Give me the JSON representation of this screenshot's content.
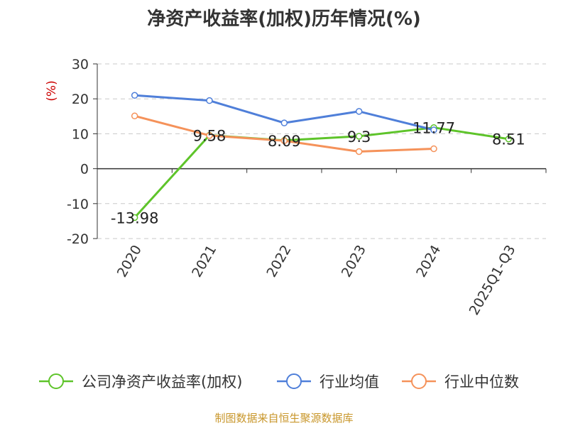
{
  "chart_data": {
    "type": "line",
    "title": "净资产收益率(加权)历年情况(%)",
    "ylabel": "(%)",
    "categories": [
      "2020",
      "2021",
      "2022",
      "2023",
      "2024",
      "2025Q1-Q3"
    ],
    "yticks": [
      30,
      20,
      10,
      0,
      -10,
      -20
    ],
    "ylim": [
      -20,
      30
    ],
    "grid": true,
    "legend_position": "bottom",
    "series": [
      {
        "name": "公司净资产收益率(加权)",
        "color": "#5ec42a",
        "values": [
          -13.98,
          9.58,
          8.09,
          9.3,
          11.77,
          8.51
        ],
        "labels": [
          "-13.98",
          "9.58",
          "8.09",
          "9.3",
          "11.77",
          "8.51"
        ]
      },
      {
        "name": "行业均值",
        "color": "#4f7fd9",
        "values": [
          21.0,
          19.5,
          13.1,
          16.4,
          11.1,
          null
        ]
      },
      {
        "name": "行业中位数",
        "color": "#f5925a",
        "values": [
          15.1,
          9.5,
          8.0,
          4.9,
          5.7,
          null
        ]
      }
    ]
  },
  "footer": {
    "source": "制图数据来自恒生聚源数据库"
  }
}
